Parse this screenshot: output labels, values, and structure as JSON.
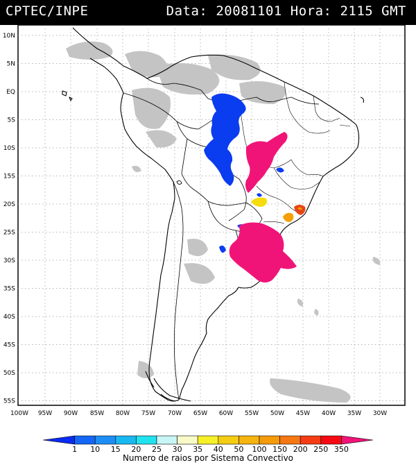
{
  "header": {
    "agency": "CPTEC/INPE",
    "data_label": "Data:",
    "date": "20081101",
    "hora_label": "Hora:",
    "time": "2115",
    "tz": "GMT"
  },
  "map": {
    "lat_labels": [
      "10N",
      "5N",
      "EQ",
      "5S",
      "10S",
      "15S",
      "20S",
      "25S",
      "30S",
      "35S",
      "40S",
      "45S",
      "50S",
      "55S"
    ],
    "lon_labels": [
      "100W",
      "95W",
      "90W",
      "85W",
      "80W",
      "75W",
      "70W",
      "65W",
      "60W",
      "55W",
      "50W",
      "45W",
      "40W",
      "35W",
      "30W"
    ]
  },
  "legend": {
    "title": "Numero de raios por Sistema Convectivo",
    "ticks": [
      "1",
      "10",
      "15",
      "20",
      "25",
      "30",
      "35",
      "40",
      "50",
      "100",
      "150",
      "200",
      "250",
      "350"
    ],
    "colors": [
      "#0a2cf0",
      "#1466f5",
      "#1e8ef5",
      "#19b8f0",
      "#20e3f0",
      "#c8f5f5",
      "#fafac8",
      "#f5f028",
      "#f5cd14",
      "#f5b40f",
      "#f59b0a",
      "#f57814",
      "#f53c14",
      "#f50a14",
      "#f01478"
    ]
  },
  "systems": [
    {
      "name": "blue-cluster-north",
      "color": "#0a3cf0",
      "max_rays": "1"
    },
    {
      "name": "magenta-cluster-central",
      "color": "#f01478",
      "max_rays": "350"
    },
    {
      "name": "yellow-cluster",
      "color": "#f5dc0a",
      "max_rays": "40"
    },
    {
      "name": "orange-cluster",
      "color": "#f5a00a",
      "max_rays": "100"
    },
    {
      "name": "red-cluster",
      "color": "#e64614",
      "max_rays": "250"
    },
    {
      "name": "magenta-cluster-south",
      "color": "#f01478",
      "max_rays": "350"
    }
  ]
}
